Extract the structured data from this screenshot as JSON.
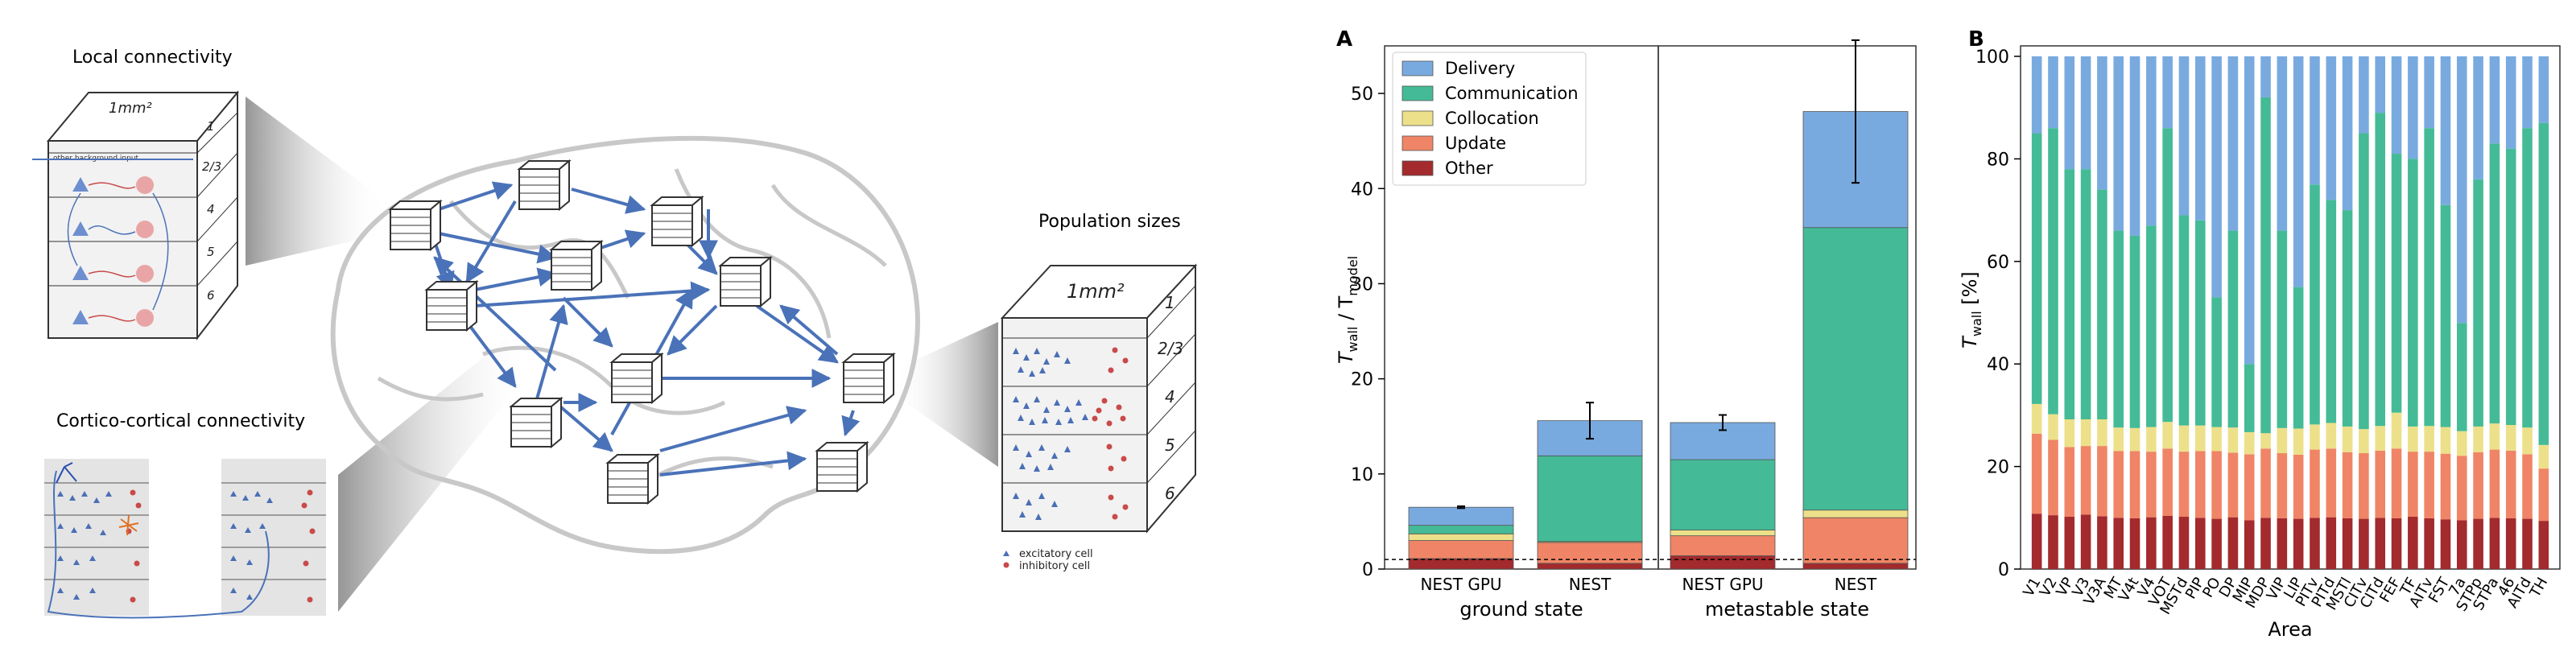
{
  "illustration": {
    "local_title": "Local connectivity",
    "cortico_title": "Cortico-cortical connectivity",
    "population_title": "Population sizes",
    "area_label": "1mm²",
    "layers": [
      "1",
      "2/3",
      "4",
      "5",
      "6"
    ],
    "background_label": "other background input",
    "legend_excitatory": "excitatory cell",
    "legend_inhibitory": "inhibitory cell",
    "colors": {
      "excitatory": "#4a6fb5",
      "inhibitory": "#c94a4a",
      "arrow": "#4a72b8",
      "brain": "#c8c8c8"
    }
  },
  "panel_labels": {
    "a": "A",
    "b": "B"
  },
  "chart_data": [
    {
      "type": "bar",
      "stacked": true,
      "groups": [
        "ground state",
        "metastable state"
      ],
      "categories": [
        "NEST GPU",
        "NEST",
        "NEST GPU",
        "NEST"
      ],
      "ylabel_main": "T",
      "ylabel_sub1": "wall",
      "ylabel_mid": " / T",
      "ylabel_sub2": "model",
      "ylim": [
        0,
        55
      ],
      "yticks": [
        0,
        10,
        20,
        30,
        40,
        50
      ],
      "reference_line": 1,
      "legend_position": "top-left",
      "series": [
        {
          "name": "Other",
          "color": "#a32a2d",
          "values": [
            1.1,
            0.6,
            1.4,
            0.6
          ]
        },
        {
          "name": "Update",
          "color": "#ef8566",
          "values": [
            1.9,
            2.2,
            2.1,
            4.8
          ]
        },
        {
          "name": "Collocation",
          "color": "#ede08a",
          "values": [
            0.7,
            0.1,
            0.6,
            0.8
          ]
        },
        {
          "name": "Communication",
          "color": "#44bb96",
          "values": [
            0.9,
            9.0,
            7.4,
            29.7
          ]
        },
        {
          "name": "Delivery",
          "color": "#79aadf",
          "values": [
            1.9,
            3.7,
            3.9,
            12.2
          ]
        }
      ],
      "legend_order": [
        "Delivery",
        "Communication",
        "Collocation",
        "Update",
        "Other"
      ],
      "error": [
        0.1,
        1.9,
        0.8,
        7.5
      ]
    },
    {
      "type": "bar",
      "stacked": true,
      "xlabel": "Area",
      "ylabel_main": "T",
      "ylabel_sub1": "wall",
      "ylabel_mid": " [%]",
      "ylim": [
        0,
        100
      ],
      "yticks": [
        0,
        20,
        40,
        60,
        80,
        100
      ],
      "categories": [
        "V1",
        "V2",
        "VP",
        "V3",
        "V3A",
        "MT",
        "V4t",
        "V4",
        "VOT",
        "MSTd",
        "PIP",
        "PO",
        "DP",
        "MIP",
        "MDP",
        "VIP",
        "LIP",
        "PITv",
        "PITd",
        "MSTl",
        "CITv",
        "CITd",
        "FEF",
        "TF",
        "AITv",
        "FST",
        "7a",
        "STPp",
        "STPa",
        "46",
        "AITd",
        "TH"
      ],
      "delivery_top": [
        85,
        86,
        78,
        78,
        74,
        66,
        65,
        67,
        86,
        69,
        68,
        53,
        66,
        40,
        92,
        66,
        55,
        75,
        72,
        70,
        85,
        89,
        81,
        80,
        86,
        71,
        48,
        76,
        83,
        82,
        86,
        87
      ],
      "series": [
        {
          "name": "Other",
          "color": "#a32a2d",
          "values": [
            10.8,
            10.5,
            10.2,
            10.6,
            10.3,
            10.0,
            9.9,
            10.1,
            10.4,
            10.2,
            10.0,
            9.8,
            10.1,
            9.5,
            10.0,
            9.9,
            9.8,
            10.0,
            10.1,
            9.9,
            9.8,
            10.0,
            9.9,
            10.2,
            9.9,
            9.7,
            9.5,
            9.8,
            10.0,
            9.9,
            9.8,
            9.4
          ]
        },
        {
          "name": "Update",
          "color": "#ef8566",
          "values": [
            15.6,
            14.7,
            13.6,
            13.4,
            13.7,
            13.0,
            13.1,
            12.8,
            13.1,
            12.7,
            13.0,
            13.2,
            12.6,
            12.9,
            13.5,
            12.7,
            12.5,
            13.3,
            13.4,
            12.9,
            12.8,
            13.1,
            13.6,
            12.7,
            13.0,
            12.8,
            12.6,
            13.0,
            13.3,
            13.2,
            12.6,
            10.2
          ]
        },
        {
          "name": "Collocation",
          "color": "#ede08a",
          "values": [
            5.8,
            5.0,
            5.4,
            5.2,
            5.2,
            4.6,
            4.5,
            4.8,
            5.2,
            5.1,
            5.0,
            4.7,
            4.9,
            4.3,
            3.0,
            4.9,
            5.1,
            4.9,
            5.0,
            5.0,
            4.7,
            4.8,
            7.0,
            4.9,
            5.0,
            5.2,
            4.8,
            5.0,
            5.1,
            5.0,
            5.2,
            4.6
          ]
        },
        {
          "name": "Communication",
          "color": "#44bb96",
          "values": [
            52.8,
            55.8,
            48.8,
            48.8,
            44.8,
            38.4,
            37.5,
            39.3,
            57.3,
            41.0,
            40.0,
            25.3,
            38.4,
            13.3,
            65.5,
            38.5,
            27.6,
            46.8,
            43.5,
            42.2,
            57.7,
            61.1,
            50.5,
            52.2,
            58.1,
            43.3,
            21.1,
            48.2,
            54.6,
            53.9,
            58.4,
            62.8
          ]
        },
        {
          "name": "Delivery",
          "color": "#79aadf",
          "values": [
            15,
            14,
            22,
            22,
            26,
            34,
            35,
            33,
            14,
            31,
            32,
            47,
            34,
            60,
            8,
            34,
            45,
            25,
            28,
            30,
            15,
            11,
            19,
            20,
            14,
            29,
            52,
            24,
            17,
            18,
            14,
            13
          ]
        }
      ]
    }
  ]
}
